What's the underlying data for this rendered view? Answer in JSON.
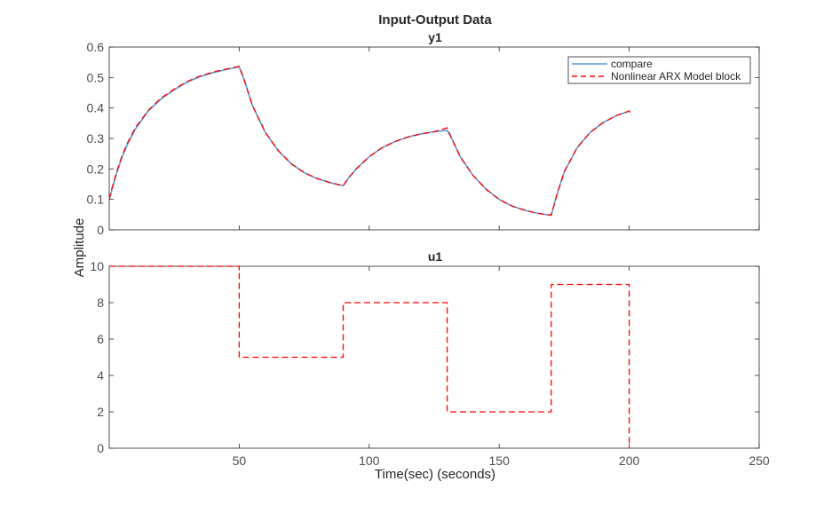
{
  "chart_data": {
    "type": "line",
    "title": "Input-Output Data",
    "xlabel": "Time(sec) (seconds)",
    "ylabel": "Amplitude",
    "xlim": [
      0,
      250
    ],
    "x_ticks": [
      "50",
      "100",
      "150",
      "200",
      "250"
    ],
    "legend_placement": "top-right",
    "grid": false,
    "colors": {
      "compare": "#5b9bd5",
      "nlarx": "#ff0000",
      "axes": "#262626",
      "tick_text": "#4d4d4d"
    },
    "subplots": [
      {
        "title": "y1",
        "ylim": [
          0,
          0.6
        ],
        "y_ticks": [
          "0",
          "0.1",
          "0.2",
          "0.3",
          "0.4",
          "0.5",
          "0.6"
        ],
        "series": [
          {
            "name": "compare",
            "style": "solid",
            "x": [
              0,
              1,
              3,
              5,
              7,
              10,
              15,
              20,
              25,
              30,
              35,
              40,
              45,
              50,
              52,
              55,
              60,
              65,
              70,
              75,
              80,
              85,
              90,
              92,
              95,
              100,
              105,
              110,
              115,
              120,
              125,
              130,
              132,
              135,
              140,
              145,
              150,
              155,
              160,
              165,
              170,
              172,
              175,
              180,
              185,
              190,
              195,
              200
            ],
            "y": [
              0.1,
              0.13,
              0.19,
              0.24,
              0.28,
              0.33,
              0.39,
              0.43,
              0.46,
              0.485,
              0.503,
              0.516,
              0.526,
              0.535,
              0.49,
              0.41,
              0.32,
              0.26,
              0.217,
              0.188,
              0.168,
              0.155,
              0.145,
              0.17,
              0.2,
              0.24,
              0.27,
              0.29,
              0.305,
              0.315,
              0.322,
              0.327,
              0.295,
              0.24,
              0.178,
              0.133,
              0.1,
              0.078,
              0.064,
              0.054,
              0.048,
              0.11,
              0.19,
              0.27,
              0.32,
              0.352,
              0.375,
              0.39
            ]
          },
          {
            "name": "Nonlinear ARX Model block",
            "style": "dashed",
            "x": [
              0,
              1,
              3,
              5,
              7,
              10,
              15,
              20,
              25,
              30,
              35,
              40,
              45,
              50,
              52,
              55,
              60,
              65,
              70,
              75,
              80,
              85,
              90,
              92,
              95,
              100,
              105,
              110,
              115,
              120,
              125,
              130,
              132,
              135,
              140,
              145,
              150,
              155,
              160,
              165,
              170,
              172,
              175,
              180,
              185,
              190,
              195,
              200,
              201
            ],
            "y": [
              0.1,
              0.135,
              0.195,
              0.245,
              0.285,
              0.335,
              0.392,
              0.433,
              0.462,
              0.487,
              0.505,
              0.518,
              0.528,
              0.537,
              0.49,
              0.41,
              0.32,
              0.26,
              0.217,
              0.188,
              0.168,
              0.155,
              0.145,
              0.17,
              0.2,
              0.24,
              0.27,
              0.29,
              0.305,
              0.315,
              0.322,
              0.335,
              0.295,
              0.24,
              0.178,
              0.133,
              0.1,
              0.078,
              0.064,
              0.054,
              0.048,
              0.11,
              0.19,
              0.27,
              0.32,
              0.352,
              0.375,
              0.39,
              0.375
            ]
          }
        ]
      },
      {
        "title": "u1",
        "ylim": [
          0,
          10
        ],
        "y_ticks": [
          "0",
          "2",
          "4",
          "6",
          "8",
          "10"
        ],
        "series": [
          {
            "name": "Nonlinear ARX Model block",
            "style": "dashed",
            "x": [
              0,
              50,
              50,
              90,
              90,
              130,
              130,
              170,
              170,
              200,
              200
            ],
            "y": [
              10,
              10,
              5,
              5,
              8,
              8,
              2,
              2,
              9,
              9,
              0
            ]
          }
        ]
      }
    ]
  }
}
